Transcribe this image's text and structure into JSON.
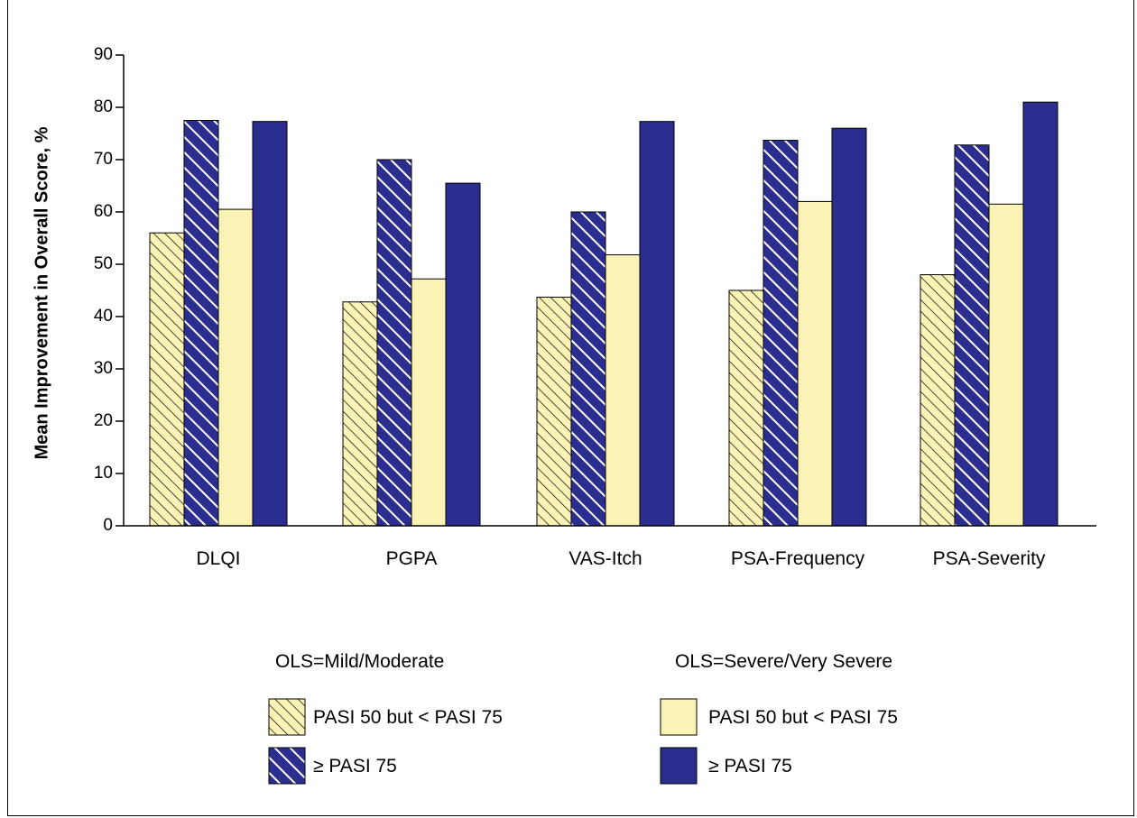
{
  "colors": {
    "navy": "#2B2E8F",
    "cream": "#FBF3B6",
    "axis": "#000000"
  },
  "chart_data": {
    "type": "bar",
    "ylabel": "Mean Improvement in Overall Score, %",
    "xlabel": "",
    "ylim": [
      0,
      90
    ],
    "yticks": [
      0,
      10,
      20,
      30,
      40,
      50,
      60,
      70,
      80,
      90
    ],
    "categories": [
      "DLQI",
      "PGPA",
      "VAS-Itch",
      "PSA-Frequency",
      "PSA-Severity"
    ],
    "series": [
      {
        "group": "OLS=Mild/Moderate",
        "name": "PASI 50 but < PASI 75",
        "style": "hatched-cream",
        "values": [
          56,
          42.8,
          43.7,
          45,
          48
        ]
      },
      {
        "group": "OLS=Mild/Moderate",
        "name": "≥ PASI 75",
        "style": "hatched-navy",
        "values": [
          77.5,
          70,
          60,
          73.7,
          72.8
        ]
      },
      {
        "group": "OLS=Severe/Very Severe",
        "name": "PASI 50 but < PASI 75",
        "style": "solid-cream",
        "values": [
          60.5,
          47.2,
          51.8,
          62,
          61.5
        ]
      },
      {
        "group": "OLS=Severe/Very Severe",
        "name": "≥ PASI 75",
        "style": "solid-navy",
        "values": [
          77.3,
          65.5,
          77.3,
          76,
          81
        ]
      }
    ],
    "legend": {
      "placement": "bottom",
      "groups": [
        {
          "title": "OLS=Mild/Moderate",
          "items": [
            "PASI 50 but < PASI 75",
            "≥ PASI 75"
          ]
        },
        {
          "title": "OLS=Severe/Very Severe",
          "items": [
            "PASI 50 but < PASI 75",
            "≥ PASI 75"
          ]
        }
      ]
    }
  }
}
